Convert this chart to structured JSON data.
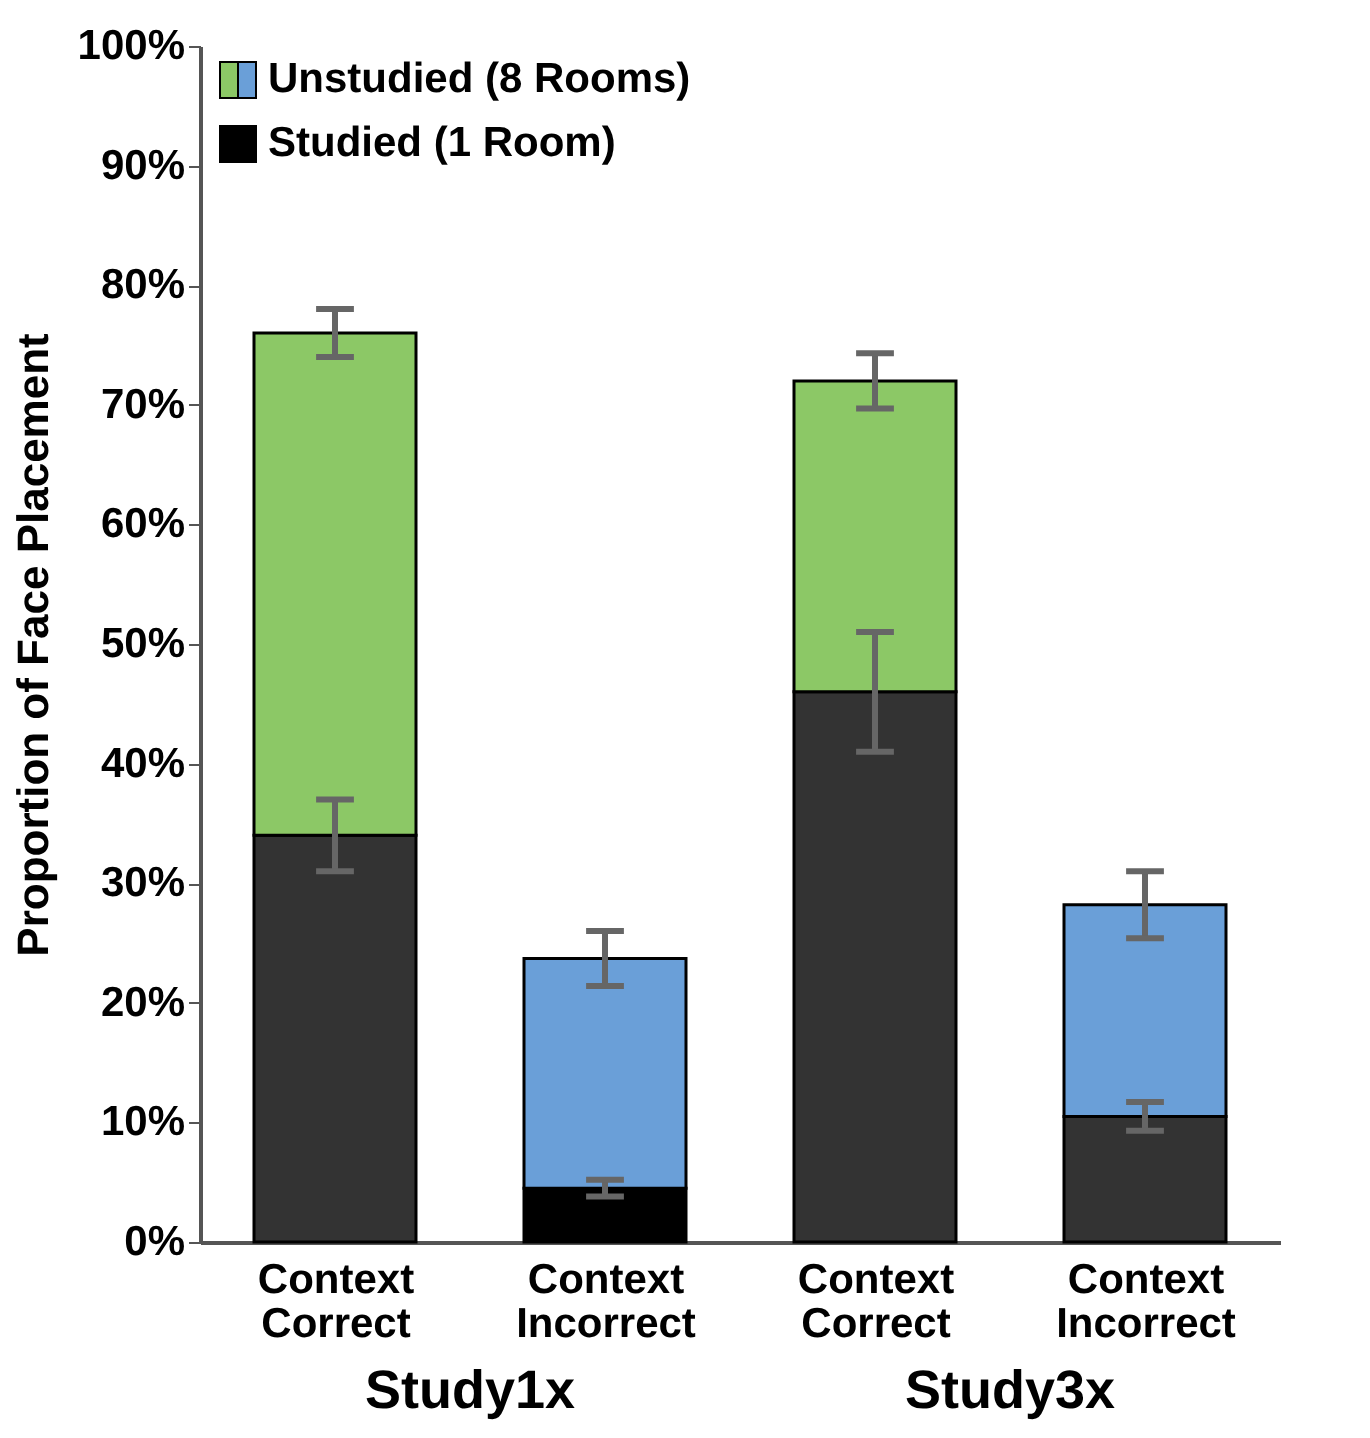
{
  "chart_data": {
    "type": "bar",
    "stacked": true,
    "ylabel": "Proportion of Face Placement",
    "categories": [
      "Context Correct",
      "Context Incorrect",
      "Context Correct",
      "Context Incorrect"
    ],
    "series": [
      {
        "name": "Studied (1 Room)",
        "color": "#000000",
        "colors": [
          "#333333",
          "#000000",
          "#333333",
          "#333333"
        ],
        "values": [
          34,
          4.5,
          46,
          10.5
        ],
        "errors": [
          3,
          0.7,
          5,
          1.2
        ]
      },
      {
        "name": "Unstudied (8 Rooms)",
        "color": "#8cc866",
        "colors": [
          "#8cc866",
          "#6a9fd8",
          "#8cc866",
          "#6a9fd8"
        ],
        "values": [
          42,
          19.2,
          26,
          17.7
        ],
        "errors": [
          2,
          2.3,
          2.3,
          2.8
        ]
      }
    ],
    "annotations": [
      "Study1x",
      "Study3x"
    ],
    "ylim": [
      0,
      100
    ],
    "yticks": [
      {
        "value": 0,
        "label": "0%"
      },
      {
        "value": 10,
        "label": "10%"
      },
      {
        "value": 20,
        "label": "20%"
      },
      {
        "value": 30,
        "label": "30%"
      },
      {
        "value": 40,
        "label": "40%"
      },
      {
        "value": 50,
        "label": "50%"
      },
      {
        "value": 60,
        "label": "60%"
      },
      {
        "value": 70,
        "label": "70%"
      },
      {
        "value": 80,
        "label": "80%"
      },
      {
        "value": 90,
        "label": "90%"
      },
      {
        "value": 100,
        "label": "100%"
      }
    ],
    "grid": false,
    "legend": "top left"
  }
}
